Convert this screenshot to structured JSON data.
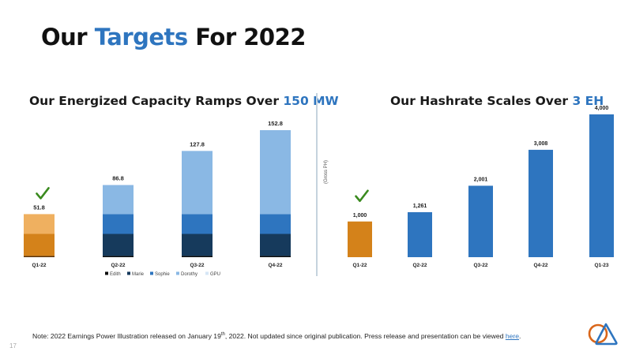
{
  "slide": {
    "title_part1": "Our ",
    "title_accent": "Targets",
    "title_part2": " For 2022",
    "page_number": "17",
    "note_text": "Note: 2022 Earnings Power Illustration released on January 19",
    "note_sup": "th",
    "note_text2": ", 2022. Not updated since original publication. Press release and presentation can be viewed ",
    "note_link": "here",
    "note_end": ".",
    "accent_color": "#2e75bf",
    "check_color": "#3a8a1e"
  },
  "chart_data": [
    {
      "type": "bar",
      "stacked": true,
      "title": "Our Energized Capacity Ramps Over ",
      "title_accent": "150 MW",
      "categories": [
        "Q1-22",
        "Q2-22",
        "Q3-22",
        "Q4-22"
      ],
      "totals": [
        51.8,
        86.8,
        127.8,
        152.8
      ],
      "total_labels": [
        "51.8",
        "86.8",
        "127.8",
        "152.8"
      ],
      "series": [
        {
          "name": "Edith",
          "values": [
            1.5,
            1.5,
            1.5,
            1.5
          ],
          "color": "#0d0d0d"
        },
        {
          "name": "Marie",
          "values": [
            26.5,
            26.5,
            26.5,
            26.5
          ],
          "color": "#163a5c"
        },
        {
          "name": "Sophie",
          "values": [
            23.8,
            23.8,
            23.8,
            23.8
          ],
          "color": "#2e75bf"
        },
        {
          "name": "Dorothy",
          "values": [
            0,
            35,
            76,
            101
          ],
          "color": "#8ab8e4"
        },
        {
          "name": "GPU",
          "values": [
            0,
            0,
            0,
            0
          ],
          "color": "#d6e6f5"
        }
      ],
      "achieved_categories": [
        "Q1-22"
      ],
      "achieved_colors": [
        "#5a3208",
        "#d4821a",
        "#efb060",
        "#efb060",
        "#efb060"
      ],
      "legend": [
        "Edith",
        "Marie",
        "Sophie",
        "Dorothy",
        "GPU"
      ],
      "legend_position": "bottom",
      "ylim": [
        0,
        160
      ],
      "xlabel": "",
      "ylabel": "",
      "grid": false
    },
    {
      "type": "bar",
      "title": "Our Hashrate Scales Over ",
      "title_accent": "3 EH",
      "categories": [
        "Q1-22",
        "Q2-22",
        "Q3-22",
        "Q4-22",
        "Q1-23"
      ],
      "values": [
        1000,
        1261,
        2001,
        3008,
        4000
      ],
      "value_labels": [
        "1,000",
        "1,261",
        "2,001",
        "3,008",
        "4,000"
      ],
      "colors": [
        "#d4821a",
        "#2e75bf",
        "#2e75bf",
        "#2e75bf",
        "#2e75bf"
      ],
      "achieved_categories": [
        "Q1-22"
      ],
      "ylabel": "(Gross PH)",
      "xlabel": "",
      "ylim": [
        0,
        4000
      ],
      "grid": false
    }
  ]
}
